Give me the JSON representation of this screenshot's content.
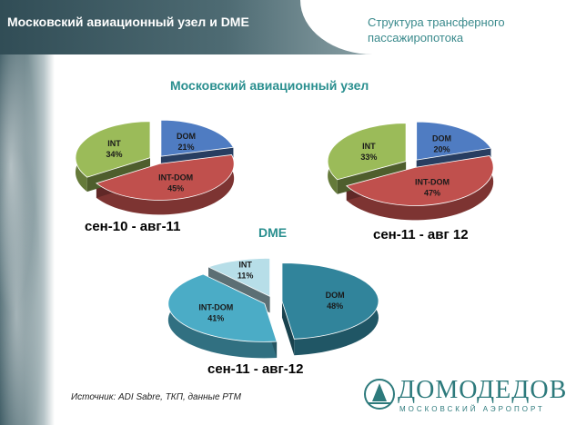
{
  "header": {
    "left_title": "Московский авиационный узел и DME",
    "right_title": "Структура трансферного пассажиропотока"
  },
  "sections": {
    "moscow_hub_title": "Московский авиационный узел",
    "dme_title": "DME"
  },
  "source_note": "Источник: ADI Sabre, ТКП, данные РТМ",
  "logo": {
    "name": "ДОМОДЕДОВО",
    "subtitle": "МОСКОВСКИЙ АЭРОПОРТ"
  },
  "chart_data": [
    {
      "type": "pie",
      "group": "Московский авиационный узел",
      "title": "сен-10 - авг-11",
      "slices": [
        {
          "label": "DOM",
          "value": 21,
          "color": "#4f7cc2"
        },
        {
          "label": "INT-DOM",
          "value": 45,
          "color": "#c0504d"
        },
        {
          "label": "INT",
          "value": 34,
          "color": "#9bbb59"
        }
      ]
    },
    {
      "type": "pie",
      "group": "Московский авиационный узел",
      "title": "сен-11 - авг 12",
      "slices": [
        {
          "label": "DOM",
          "value": 20,
          "color": "#4f7cc2"
        },
        {
          "label": "INT-DOM",
          "value": 47,
          "color": "#c0504d"
        },
        {
          "label": "INT",
          "value": 33,
          "color": "#9bbb59"
        }
      ]
    },
    {
      "type": "pie",
      "group": "DME",
      "title": "сен-11 - авг-12",
      "slices": [
        {
          "label": "DOM",
          "value": 48,
          "color": "#31849b"
        },
        {
          "label": "INT-DOM",
          "value": 41,
          "color": "#4bacc6"
        },
        {
          "label": "INT",
          "value": 11,
          "color": "#b7dee8"
        }
      ]
    }
  ]
}
